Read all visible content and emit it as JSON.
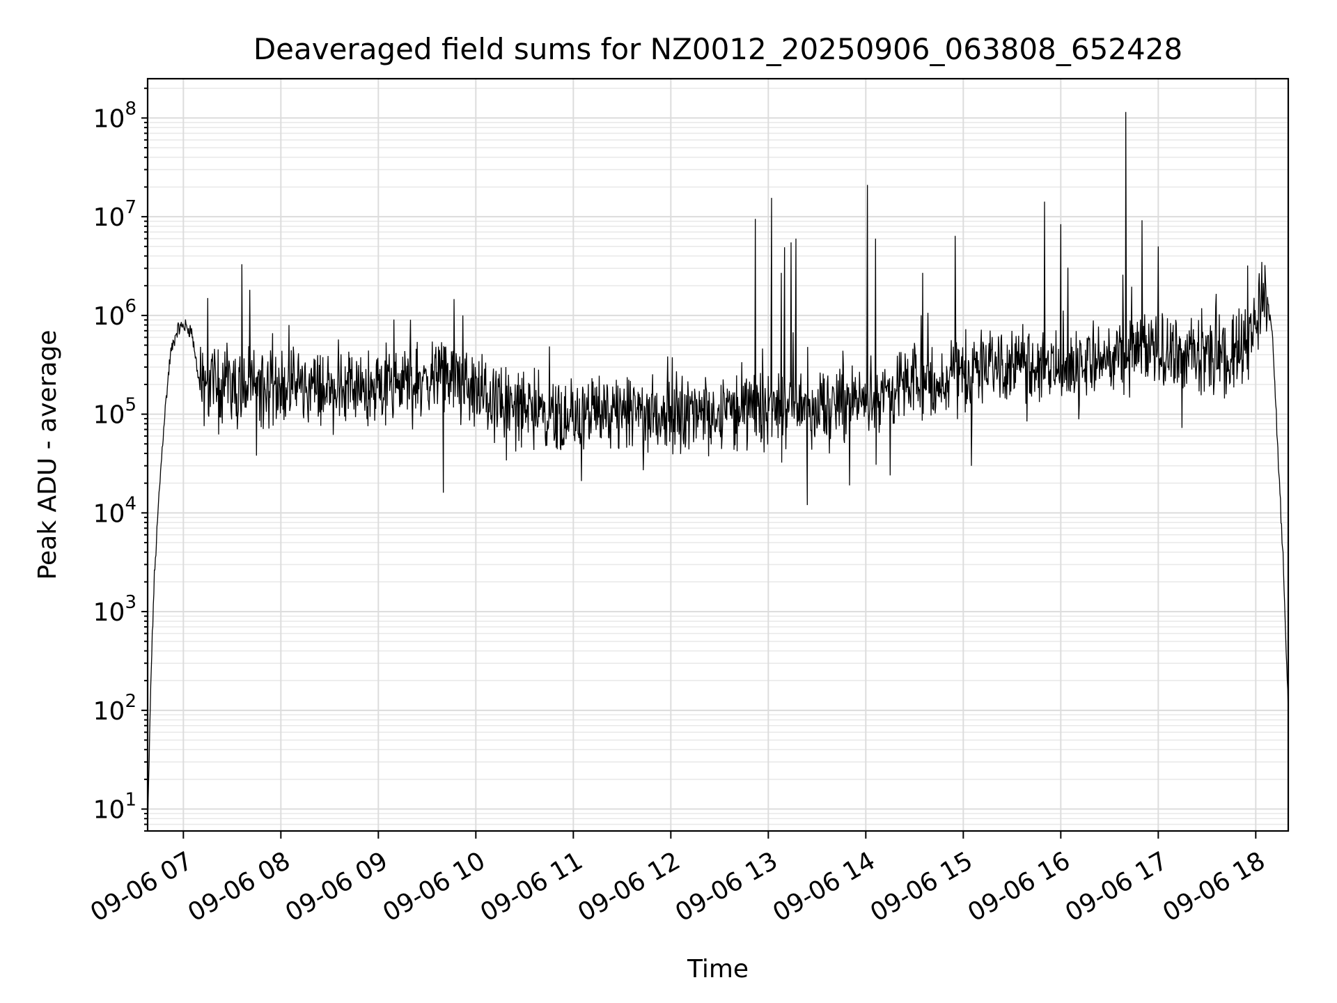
{
  "chart_data": {
    "type": "line",
    "title": "Deaveraged field sums for NZ0012_20250906_063808_652428",
    "xlabel": "Time",
    "ylabel": "Peak ADU - average",
    "yscale": "log",
    "grid": "on (major and minor)",
    "legend": "none",
    "xlim": [
      "09-06 06:38",
      "09-06 18:20"
    ],
    "ylim": [
      6,
      250000000
    ],
    "x_ticks": [
      "09-06 07",
      "09-06 08",
      "09-06 09",
      "09-06 10",
      "09-06 11",
      "09-06 12",
      "09-06 13",
      "09-06 14",
      "09-06 15",
      "09-06 16",
      "09-06 17",
      "09-06 18"
    ],
    "y_ticks": [
      {
        "base": "10",
        "exp": "1",
        "value": 10
      },
      {
        "base": "10",
        "exp": "2",
        "value": 100
      },
      {
        "base": "10",
        "exp": "3",
        "value": 1000
      },
      {
        "base": "10",
        "exp": "4",
        "value": 10000
      },
      {
        "base": "10",
        "exp": "5",
        "value": 100000
      },
      {
        "base": "10",
        "exp": "6",
        "value": 1000000
      },
      {
        "base": "10",
        "exp": "7",
        "value": 10000000
      },
      {
        "base": "10",
        "exp": "8",
        "value": 100000000
      }
    ],
    "series": [
      {
        "color": "#000000",
        "baseline": [
          [
            "09-06 06:38",
            6
          ],
          [
            "09-06 06:40",
            200
          ],
          [
            "09-06 06:42",
            2000
          ],
          [
            "09-06 06:45",
            15000
          ],
          [
            "09-06 06:48",
            80000
          ],
          [
            "09-06 06:52",
            400000
          ],
          [
            "09-06 06:56",
            700000
          ],
          [
            "09-06 07:00",
            800000
          ],
          [
            "09-06 07:05",
            700000
          ],
          [
            "09-06 07:10",
            200000
          ],
          [
            "09-06 08:00",
            190000
          ],
          [
            "09-06 09:00",
            180000
          ],
          [
            "09-06 09:45",
            250000
          ],
          [
            "09-06 10:00",
            170000
          ],
          [
            "09-06 10:30",
            110000
          ],
          [
            "09-06 11:00",
            100000
          ],
          [
            "09-06 12:00",
            100000
          ],
          [
            "09-06 13:00",
            110000
          ],
          [
            "09-06 14:00",
            140000
          ],
          [
            "09-06 14:30",
            200000
          ],
          [
            "09-06 15:00",
            280000
          ],
          [
            "09-06 15:30",
            350000
          ],
          [
            "09-06 16:00",
            300000
          ],
          [
            "09-06 16:30",
            380000
          ],
          [
            "09-06 17:00",
            450000
          ],
          [
            "09-06 17:30",
            350000
          ],
          [
            "09-06 17:55",
            500000
          ],
          [
            "09-06 18:05",
            1800000
          ],
          [
            "09-06 18:10",
            800000
          ],
          [
            "09-06 18:14",
            30000
          ],
          [
            "09-06 18:17",
            3000
          ],
          [
            "09-06 18:20",
            100
          ]
        ],
        "spikes": [
          [
            "09-06 07:15",
            1500000
          ],
          [
            "09-06 07:36",
            3300000
          ],
          [
            "09-06 08:05",
            800000
          ],
          [
            "09-06 09:52",
            1000000
          ],
          [
            "09-06 12:52",
            9500000
          ],
          [
            "09-06 13:02",
            15500000
          ],
          [
            "09-06 13:08",
            2700000
          ],
          [
            "09-06 13:10",
            4900000
          ],
          [
            "09-06 13:14",
            5500000
          ],
          [
            "09-06 13:17",
            6000000
          ],
          [
            "09-06 14:01",
            21000000
          ],
          [
            "09-06 14:06",
            6000000
          ],
          [
            "09-06 14:35",
            2700000
          ],
          [
            "09-06 14:55",
            6400000
          ],
          [
            "09-06 15:50",
            14200000
          ],
          [
            "09-06 16:00",
            8400000
          ],
          [
            "09-06 16:40",
            115000000
          ],
          [
            "09-06 16:50",
            9200000
          ],
          [
            "09-06 17:00",
            5000000
          ],
          [
            "09-06 17:55",
            3200000
          ]
        ],
        "dips": [
          [
            "09-06 07:45",
            38000
          ],
          [
            "09-06 09:40",
            16000
          ],
          [
            "09-06 11:05",
            21000
          ],
          [
            "09-06 13:24",
            12000
          ],
          [
            "09-06 13:50",
            19000
          ],
          [
            "09-06 14:15",
            24000
          ],
          [
            "09-06 15:05",
            30000
          ]
        ]
      }
    ]
  }
}
